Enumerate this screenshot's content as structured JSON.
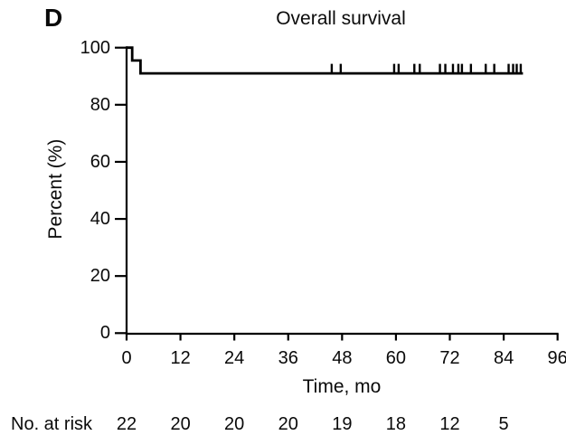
{
  "chart_data": {
    "type": "line",
    "subtype": "kaplan-meier-step",
    "panel_label": "D",
    "title": "Overall survival",
    "xlabel": "Time, mo",
    "ylabel": "Percent (%)",
    "xlim": [
      0,
      96
    ],
    "ylim": [
      0,
      100
    ],
    "x_ticks": [
      0,
      12,
      24,
      36,
      48,
      60,
      72,
      84,
      96
    ],
    "y_ticks": [
      0,
      20,
      40,
      60,
      80,
      100
    ],
    "grid": false,
    "legend": false,
    "line_color": "#000000",
    "background_color": "#ffffff",
    "series": [
      {
        "name": "Overall survival",
        "steps": [
          [
            0,
            100
          ],
          [
            1.25,
            100
          ],
          [
            1.25,
            95.5
          ],
          [
            3.1,
            95.5
          ],
          [
            3.1,
            91
          ],
          [
            88.3,
            91
          ]
        ],
        "censor_times": [
          45.7,
          47.7,
          59.6,
          60.6,
          64.1,
          65.3,
          69.8,
          71.0,
          72.7,
          73.9,
          74.7,
          76.7,
          80.0,
          81.9,
          85.1,
          86.1,
          86.9,
          87.8
        ],
        "censor_level": 91
      }
    ],
    "at_risk": {
      "label": "No. at risk",
      "times": [
        0,
        12,
        24,
        36,
        48,
        60,
        72,
        84
      ],
      "values": [
        22,
        20,
        20,
        20,
        19,
        18,
        12,
        5
      ]
    }
  }
}
